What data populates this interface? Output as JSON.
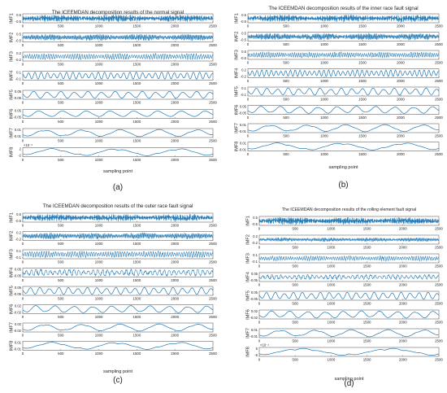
{
  "chart_data": [
    {
      "type": "line",
      "panel_label": "(a)",
      "title": "The ICEEMDAN decomposition results of the normal signal",
      "xlabel": "sampling point",
      "x_ticks": [
        "0",
        "500",
        "1000",
        "1500",
        "2000",
        "2500"
      ],
      "xlim": [
        0,
        2500
      ],
      "series": [
        {
          "name": "IMF1",
          "y_ticks": [
            "0.5",
            "-0.5"
          ],
          "ylim": [
            -0.5,
            0.5
          ],
          "amplitude": 0.45,
          "cycles": 300,
          "style": "dense"
        },
        {
          "name": "IMF2",
          "y_ticks": [
            "0.5",
            "-0.5"
          ],
          "ylim": [
            -0.5,
            0.5
          ],
          "amplitude": 0.4,
          "cycles": 160,
          "style": "dense"
        },
        {
          "name": "IMF3",
          "y_ticks": [
            "0.2",
            "-0.2"
          ],
          "ylim": [
            -0.2,
            0.2
          ],
          "amplitude": 0.15,
          "cycles": 80,
          "style": "dense"
        },
        {
          "name": "IMF4",
          "y_ticks": [
            "0.1",
            "-0.1"
          ],
          "ylim": [
            -0.1,
            0.1
          ],
          "amplitude": 0.08,
          "cycles": 30,
          "style": "wave"
        },
        {
          "name": "IMF5",
          "y_ticks": [
            "0.05",
            "-0.05"
          ],
          "ylim": [
            -0.05,
            0.05
          ],
          "amplitude": 0.04,
          "cycles": 14,
          "style": "wave"
        },
        {
          "name": "IMF6",
          "y_ticks": [
            "0.05",
            "-0.05"
          ],
          "ylim": [
            -0.05,
            0.05
          ],
          "amplitude": 0.035,
          "cycles": 8,
          "style": "wave"
        },
        {
          "name": "IMF7",
          "y_ticks": [
            "0.01",
            "-0.01"
          ],
          "ylim": [
            -0.01,
            0.01
          ],
          "amplitude": 0.008,
          "cycles": 5,
          "style": "wave"
        },
        {
          "name": "IMF8",
          "y_ticks": [
            "2",
            "-2"
          ],
          "ylim": [
            -2,
            2
          ],
          "amplitude": 1.6,
          "cycles": 3,
          "style": "wave",
          "exponent": "×10⁻³"
        }
      ]
    },
    {
      "type": "line",
      "panel_label": "(b)",
      "title": "The ICEEMDAN decomposition results of the inner race fault signal",
      "xlabel": "sampling point",
      "x_ticks": [
        "0",
        "500",
        "1000",
        "1500",
        "2000",
        "2500"
      ],
      "xlim": [
        0,
        2500
      ],
      "series": [
        {
          "name": "IMF1",
          "y_ticks": [
            "0.5",
            "-0.5"
          ],
          "ylim": [
            -0.5,
            0.5
          ],
          "amplitude": 0.45,
          "cycles": 300,
          "style": "dense"
        },
        {
          "name": "IMF2",
          "y_ticks": [
            "0.5",
            "-0.5"
          ],
          "ylim": [
            -0.5,
            0.5
          ],
          "amplitude": 0.42,
          "cycles": 180,
          "style": "dense"
        },
        {
          "name": "IMF3",
          "y_ticks": [
            "0.5",
            "-0.5"
          ],
          "ylim": [
            -0.5,
            0.5
          ],
          "amplitude": 0.35,
          "cycles": 90,
          "style": "dense"
        },
        {
          "name": "IMF4",
          "y_ticks": [
            "0.2",
            "-0.2"
          ],
          "ylim": [
            -0.2,
            0.2
          ],
          "amplitude": 0.15,
          "cycles": 40,
          "style": "wave"
        },
        {
          "name": "IMF5",
          "y_ticks": [
            "0.1",
            "-0.1"
          ],
          "ylim": [
            -0.1,
            0.1
          ],
          "amplitude": 0.08,
          "cycles": 18,
          "style": "wave"
        },
        {
          "name": "IMF6",
          "y_ticks": [
            "0.05",
            "-0.05"
          ],
          "ylim": [
            -0.05,
            0.05
          ],
          "amplitude": 0.04,
          "cycles": 10,
          "style": "wave"
        },
        {
          "name": "IMF7",
          "y_ticks": [
            "0.01",
            "-0.01"
          ],
          "ylim": [
            -0.01,
            0.01
          ],
          "amplitude": 0.008,
          "cycles": 5,
          "style": "wave"
        },
        {
          "name": "IMF8",
          "y_ticks": [
            "0.01",
            "-0.01"
          ],
          "ylim": [
            -0.01,
            0.01
          ],
          "amplitude": 0.008,
          "cycles": 3,
          "style": "wave"
        }
      ]
    },
    {
      "type": "line",
      "panel_label": "(c)",
      "title": "The ICEEMDAN decomposition results of the outer race fault signal",
      "xlabel": "sampling point",
      "x_ticks": [
        "0",
        "500",
        "1000",
        "1500",
        "2000",
        "2500"
      ],
      "xlim": [
        0,
        2500
      ],
      "series": [
        {
          "name": "IMF1",
          "y_ticks": [
            "0.5",
            "-0.5"
          ],
          "ylim": [
            -0.5,
            0.5
          ],
          "amplitude": 0.45,
          "cycles": 300,
          "style": "dense"
        },
        {
          "name": "IMF2",
          "y_ticks": [
            "0.2",
            "-0.2"
          ],
          "ylim": [
            -0.2,
            0.2
          ],
          "amplitude": 0.16,
          "cycles": 160,
          "style": "dense"
        },
        {
          "name": "IMF3",
          "y_ticks": [
            "0.1",
            "-0.1"
          ],
          "ylim": [
            -0.1,
            0.1
          ],
          "amplitude": 0.08,
          "cycles": 80,
          "style": "dense"
        },
        {
          "name": "IMF4",
          "y_ticks": [
            "0.05",
            "-0.05"
          ],
          "ylim": [
            -0.05,
            0.05
          ],
          "amplitude": 0.04,
          "cycles": 40,
          "style": "dense"
        },
        {
          "name": "IMF5",
          "y_ticks": [
            "0.05",
            "-0.05"
          ],
          "ylim": [
            -0.05,
            0.05
          ],
          "amplitude": 0.04,
          "cycles": 20,
          "style": "wave"
        },
        {
          "name": "IMF6",
          "y_ticks": [
            "0.02",
            "-0.02"
          ],
          "ylim": [
            -0.02,
            0.02
          ],
          "amplitude": 0.016,
          "cycles": 10,
          "style": "wave"
        },
        {
          "name": "IMF7",
          "y_ticks": [
            "0.02",
            "-0.02"
          ],
          "ylim": [
            -0.02,
            0.02
          ],
          "amplitude": 0.016,
          "cycles": 5,
          "style": "wave"
        },
        {
          "name": "IMF8",
          "y_ticks": [
            "0.01",
            "-0.01"
          ],
          "ylim": [
            -0.01,
            0.01
          ],
          "amplitude": 0.008,
          "cycles": 3,
          "style": "wave"
        }
      ]
    },
    {
      "type": "line",
      "panel_label": "(d)",
      "title": "The ICEEMDAN decomposition results of the  rolling element fault signal",
      "xlabel": "sampling point",
      "x_ticks": [
        "0",
        "500",
        "1000",
        "1500",
        "2000",
        "2500"
      ],
      "xlim": [
        0,
        2500
      ],
      "series": [
        {
          "name": "IMF1",
          "y_ticks": [
            "0.5",
            "-0.5"
          ],
          "ylim": [
            -0.5,
            0.5
          ],
          "amplitude": 0.45,
          "cycles": 300,
          "style": "dense"
        },
        {
          "name": "IMF2",
          "y_ticks": [
            "0.2",
            "-0.2"
          ],
          "ylim": [
            -0.2,
            0.2
          ],
          "amplitude": 0.1,
          "cycles": 160,
          "style": "dense"
        },
        {
          "name": "IMF3",
          "y_ticks": [
            "0.1",
            "-0.1"
          ],
          "ylim": [
            -0.1,
            0.1
          ],
          "amplitude": 0.06,
          "cycles": 80,
          "style": "dense"
        },
        {
          "name": "IMF4",
          "y_ticks": [
            "0.05",
            "-0.05"
          ],
          "ylim": [
            -0.05,
            0.05
          ],
          "amplitude": 0.03,
          "cycles": 40,
          "style": "dense"
        },
        {
          "name": "IMF5",
          "y_ticks": [
            "0.05",
            "-0.05"
          ],
          "ylim": [
            -0.05,
            0.05
          ],
          "amplitude": 0.04,
          "cycles": 20,
          "style": "wave"
        },
        {
          "name": "IMF6",
          "y_ticks": [
            "0.02",
            "-0.02"
          ],
          "ylim": [
            -0.02,
            0.02
          ],
          "amplitude": 0.016,
          "cycles": 10,
          "style": "wave"
        },
        {
          "name": "IMF7",
          "y_ticks": [
            "0.01",
            "-0.01"
          ],
          "ylim": [
            -0.01,
            0.01
          ],
          "amplitude": 0.008,
          "cycles": 5,
          "style": "wave"
        },
        {
          "name": "IMF8",
          "y_ticks": [
            "5",
            "-5"
          ],
          "ylim": [
            -5,
            5
          ],
          "amplitude": 4,
          "cycles": 2,
          "style": "wave",
          "exponent": "×10⁻⁴"
        }
      ]
    }
  ],
  "colors": {
    "line": "#1f77b4",
    "axis": "#666666",
    "text": "#222222"
  }
}
